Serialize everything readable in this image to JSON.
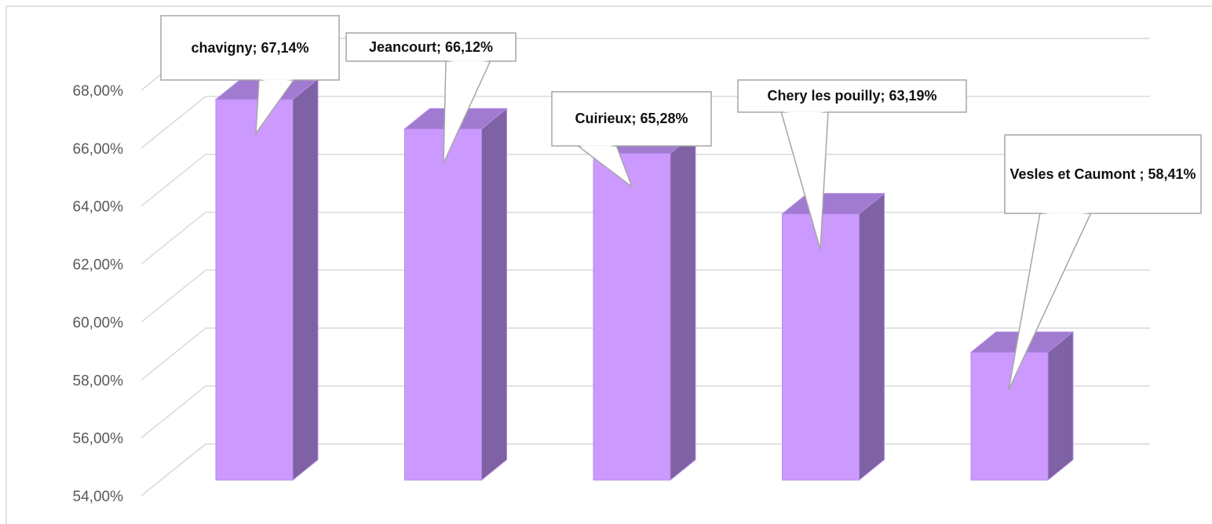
{
  "chart_data": {
    "type": "bar3d",
    "values": [
      67.14,
      66.12,
      65.28,
      63.19,
      58.41
    ],
    "value_labels": [
      "chavigny; 67,14%",
      "Jeancourt; 66,12%",
      "Cuirieux; 65,28%",
      "Chery les pouilly; 63,19%",
      "Vesles et Caumont ; 58,41%"
    ],
    "colors": {
      "front": "#cc99ff",
      "top": "#a07bd0",
      "side": "#7f62a4"
    },
    "ylim": [
      54,
      68
    ],
    "yticks": [
      {
        "value": 54,
        "label": "54,00%"
      },
      {
        "value": 56,
        "label": "56,00%"
      },
      {
        "value": 58,
        "label": "58,00%"
      },
      {
        "value": 60,
        "label": "60,00%"
      },
      {
        "value": 62,
        "label": "62,00%"
      },
      {
        "value": 64,
        "label": "64,00%"
      },
      {
        "value": 66,
        "label": "66,00%"
      },
      {
        "value": 68,
        "label": "68,00%"
      }
    ],
    "grid": true
  }
}
